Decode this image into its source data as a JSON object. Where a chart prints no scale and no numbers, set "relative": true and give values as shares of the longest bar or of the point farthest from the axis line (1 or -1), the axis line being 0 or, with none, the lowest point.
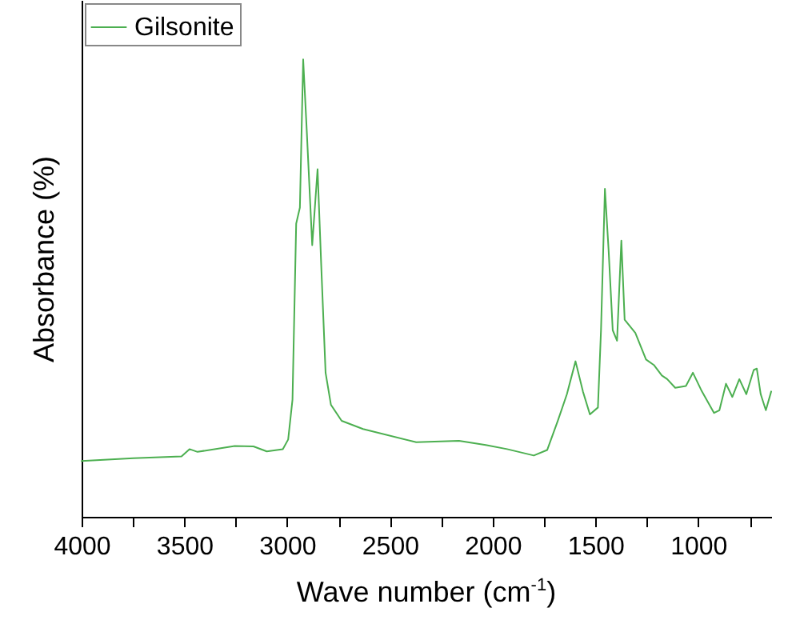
{
  "chart_data": {
    "type": "line",
    "relative": true,
    "xlabel": "Wave number (cm$^{-1}$)",
    "ylabel": "Absorbance (%)",
    "xlim": [
      4000,
      645
    ],
    "xticks": [
      4000,
      {
        "value": 3750,
        "label": null
      },
      3500,
      {
        "value": 3250,
        "label": null
      },
      3000,
      {
        "value": 2750,
        "label": null
      },
      2500,
      {
        "value": 2250,
        "label": null
      },
      2000,
      {
        "value": 1750,
        "label": null
      },
      1500,
      {
        "value": 1250,
        "label": null
      },
      1000,
      {
        "value": 750,
        "label": null
      }
    ],
    "legend": "top left",
    "grid": false,
    "marker": "none",
    "line_style": "solid",
    "series": [
      {
        "name": "Gilsonite",
        "color": "#4caf50",
        "x": [
          4000,
          3748,
          3514,
          3475,
          3436,
          3255,
          3164,
          3099,
          3021,
          2995,
          2974,
          2956,
          2938,
          2922,
          2904,
          2878,
          2852,
          2834,
          2813,
          2787,
          2735,
          2631,
          2372,
          2164,
          2034,
          1930,
          1800,
          1735,
          1683,
          1639,
          1597,
          1561,
          1527,
          1488,
          1473,
          1454,
          1436,
          1416,
          1395,
          1374,
          1358,
          1306,
          1254,
          1216,
          1177,
          1151,
          1112,
          1060,
          1026,
          982,
          923,
          897,
          865,
          834,
          800,
          766,
          730,
          715,
          696,
          671,
          645
        ],
        "values": [
          0.122,
          0.128,
          0.132,
          0.148,
          0.142,
          0.155,
          0.154,
          0.143,
          0.148,
          0.169,
          0.256,
          0.641,
          0.676,
          1.0,
          0.839,
          0.594,
          0.76,
          0.548,
          0.315,
          0.245,
          0.21,
          0.192,
          0.163,
          0.166,
          0.157,
          0.148,
          0.134,
          0.146,
          0.21,
          0.268,
          0.34,
          0.274,
          0.224,
          0.239,
          0.408,
          0.717,
          0.583,
          0.408,
          0.385,
          0.604,
          0.431,
          0.402,
          0.344,
          0.332,
          0.309,
          0.301,
          0.282,
          0.286,
          0.315,
          0.274,
          0.227,
          0.233,
          0.291,
          0.262,
          0.301,
          0.268,
          0.321,
          0.324,
          0.268,
          0.233,
          0.274
        ]
      }
    ]
  }
}
